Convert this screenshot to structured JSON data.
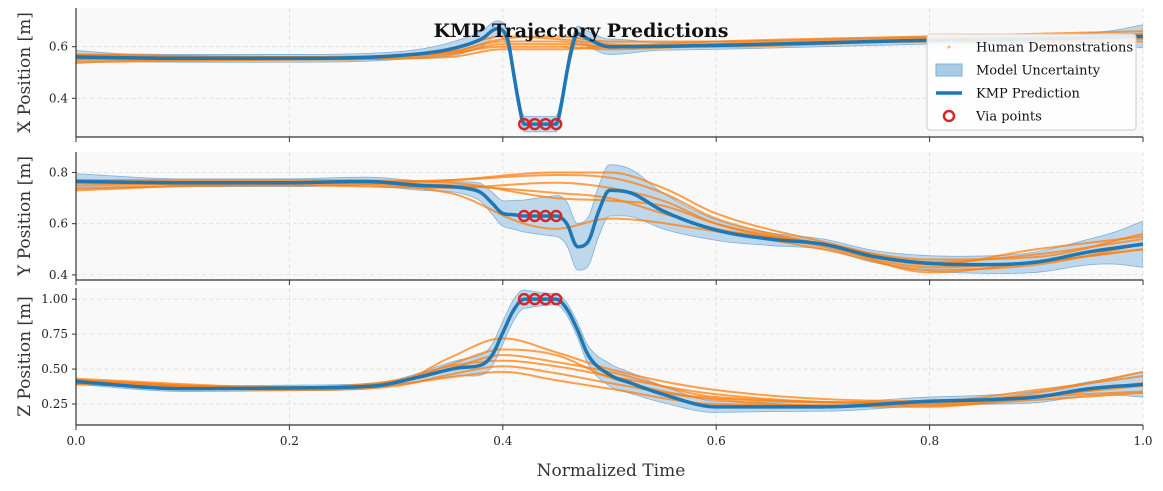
{
  "chart_data": {
    "type": "line",
    "title": "KMP Trajectory Predictions",
    "xlabel": "Normalized Time",
    "xlim": [
      0,
      1
    ],
    "xticks": [
      "0.0",
      "0.2",
      "0.4",
      "0.6",
      "0.8",
      "1.0"
    ],
    "xtick_values": [
      0,
      0.2,
      0.4,
      0.6,
      0.8,
      1.0
    ],
    "colors": {
      "prediction": "#1f77b4",
      "uncertainty": "#aacbe6",
      "demonstrations": "#ff7f0e",
      "via": "#d62728",
      "grid": "#dddddd",
      "plot_bg": "#f9f9f9"
    },
    "legend": {
      "placement": "top-right",
      "entries": [
        {
          "label": "Human Demonstrations",
          "kind": "dot"
        },
        {
          "label": "Model Uncertainty",
          "kind": "patch"
        },
        {
          "label": "KMP Prediction",
          "kind": "line"
        },
        {
          "label": "Via points",
          "kind": "circle"
        }
      ]
    },
    "subplots": [
      {
        "id": "x",
        "ylabel": "X Position [m]",
        "ylim": [
          0.25,
          0.75
        ],
        "yticks": [
          0.4,
          0.6
        ],
        "ytick_labels": [
          "0.4",
          "0.6"
        ],
        "prediction": {
          "t": [
            0,
            0.1,
            0.2,
            0.3,
            0.35,
            0.38,
            0.395,
            0.405,
            0.41,
            0.415,
            0.42,
            0.45,
            0.455,
            0.46,
            0.465,
            0.47,
            0.48,
            0.5,
            0.6,
            0.7,
            0.8,
            0.9,
            1.0
          ],
          "y": [
            0.56,
            0.555,
            0.555,
            0.565,
            0.59,
            0.63,
            0.67,
            0.62,
            0.5,
            0.38,
            0.3,
            0.3,
            0.38,
            0.5,
            0.6,
            0.65,
            0.63,
            0.6,
            0.605,
            0.615,
            0.625,
            0.63,
            0.64
          ]
        },
        "band_halfwidth": {
          "t": [
            0,
            0.05,
            0.3,
            0.38,
            0.41,
            0.45,
            0.5,
            0.55,
            0.9,
            0.97,
            1.0
          ],
          "w": [
            0.025,
            0.015,
            0.015,
            0.03,
            0.03,
            0.03,
            0.03,
            0.015,
            0.015,
            0.025,
            0.045
          ]
        },
        "demonstrations": [
          {
            "t": [
              0,
              0.2,
              0.35,
              0.4,
              0.45,
              0.5,
              0.6,
              0.8,
              1.0
            ],
            "y": [
              0.57,
              0.56,
              0.58,
              0.62,
              0.62,
              0.6,
              0.61,
              0.62,
              0.63
            ]
          },
          {
            "t": [
              0,
              0.2,
              0.35,
              0.4,
              0.45,
              0.5,
              0.6,
              0.8,
              1.0
            ],
            "y": [
              0.55,
              0.555,
              0.575,
              0.6,
              0.6,
              0.59,
              0.605,
              0.63,
              0.65
            ]
          },
          {
            "t": [
              0,
              0.2,
              0.35,
              0.4,
              0.45,
              0.5,
              0.6,
              0.8,
              1.0
            ],
            "y": [
              0.54,
              0.55,
              0.56,
              0.59,
              0.59,
              0.6,
              0.62,
              0.64,
              0.66
            ]
          },
          {
            "t": [
              0,
              0.2,
              0.35,
              0.4,
              0.45,
              0.5,
              0.6,
              0.8,
              1.0
            ],
            "y": [
              0.56,
              0.555,
              0.59,
              0.64,
              0.63,
              0.61,
              0.6,
              0.625,
              0.64
            ]
          },
          {
            "t": [
              0,
              0.2,
              0.35,
              0.4,
              0.45,
              0.5,
              0.6,
              0.8,
              1.0
            ],
            "y": [
              0.55,
              0.55,
              0.57,
              0.61,
              0.61,
              0.6,
              0.61,
              0.62,
              0.62
            ]
          },
          {
            "t": [
              0,
              0.2,
              0.35,
              0.4,
              0.45,
              0.5,
              0.6,
              0.8,
              1.0
            ],
            "y": [
              0.57,
              0.56,
              0.58,
              0.63,
              0.64,
              0.62,
              0.62,
              0.635,
              0.645
            ]
          }
        ],
        "via_points": {
          "t": [
            0.42,
            0.43,
            0.44,
            0.45
          ],
          "y": [
            0.3,
            0.3,
            0.3,
            0.3
          ]
        }
      },
      {
        "id": "y",
        "ylabel": "Y Position [m]",
        "ylim": [
          0.38,
          0.88
        ],
        "yticks": [
          0.4,
          0.6,
          0.8
        ],
        "ytick_labels": [
          "0.4",
          "0.6",
          "0.8"
        ],
        "prediction": {
          "t": [
            0,
            0.1,
            0.2,
            0.27,
            0.32,
            0.37,
            0.38,
            0.39,
            0.4,
            0.41,
            0.42,
            0.45,
            0.46,
            0.47,
            0.48,
            0.49,
            0.5,
            0.52,
            0.55,
            0.6,
            0.65,
            0.7,
            0.75,
            0.8,
            0.85,
            0.9,
            0.95,
            1.0
          ],
          "y": [
            0.765,
            0.76,
            0.76,
            0.765,
            0.75,
            0.735,
            0.72,
            0.68,
            0.64,
            0.635,
            0.63,
            0.63,
            0.6,
            0.51,
            0.53,
            0.65,
            0.73,
            0.72,
            0.65,
            0.575,
            0.54,
            0.52,
            0.47,
            0.445,
            0.44,
            0.45,
            0.49,
            0.52
          ]
        },
        "band_halfwidth": {
          "t": [
            0,
            0.1,
            0.35,
            0.4,
            0.45,
            0.5,
            0.55,
            0.6,
            0.7,
            0.8,
            0.9,
            0.97,
            1.0
          ],
          "w": [
            0.03,
            0.015,
            0.02,
            0.05,
            0.08,
            0.1,
            0.07,
            0.04,
            0.02,
            0.03,
            0.04,
            0.06,
            0.09
          ]
        },
        "demonstrations": [
          {
            "t": [
              0,
              0.2,
              0.35,
              0.45,
              0.5,
              0.55,
              0.6,
              0.7,
              0.8,
              0.9,
              1.0
            ],
            "y": [
              0.76,
              0.76,
              0.77,
              0.79,
              0.78,
              0.72,
              0.62,
              0.52,
              0.44,
              0.5,
              0.55
            ]
          },
          {
            "t": [
              0,
              0.2,
              0.35,
              0.45,
              0.5,
              0.55,
              0.6,
              0.7,
              0.8,
              0.9,
              1.0
            ],
            "y": [
              0.74,
              0.75,
              0.74,
              0.76,
              0.74,
              0.69,
              0.6,
              0.51,
              0.43,
              0.45,
              0.5
            ]
          },
          {
            "t": [
              0,
              0.2,
              0.35,
              0.42,
              0.45,
              0.5,
              0.6,
              0.7,
              0.8,
              0.9,
              1.0
            ],
            "y": [
              0.75,
              0.76,
              0.72,
              0.6,
              0.58,
              0.62,
              0.57,
              0.5,
              0.42,
              0.44,
              0.52
            ]
          },
          {
            "t": [
              0,
              0.2,
              0.35,
              0.45,
              0.5,
              0.55,
              0.6,
              0.7,
              0.8,
              0.9,
              1.0
            ],
            "y": [
              0.77,
              0.77,
              0.76,
              0.7,
              0.69,
              0.67,
              0.6,
              0.52,
              0.46,
              0.47,
              0.56
            ]
          },
          {
            "t": [
              0,
              0.2,
              0.35,
              0.45,
              0.5,
              0.55,
              0.6,
              0.7,
              0.8,
              0.9,
              1.0
            ],
            "y": [
              0.73,
              0.76,
              0.75,
              0.72,
              0.7,
              0.64,
              0.58,
              0.52,
              0.41,
              0.45,
              0.5
            ]
          },
          {
            "t": [
              0,
              0.2,
              0.35,
              0.45,
              0.5,
              0.55,
              0.6,
              0.7,
              0.8,
              0.9,
              1.0
            ],
            "y": [
              0.76,
              0.75,
              0.77,
              0.8,
              0.8,
              0.74,
              0.64,
              0.53,
              0.45,
              0.48,
              0.54
            ]
          }
        ],
        "via_points": {
          "t": [
            0.42,
            0.43,
            0.44,
            0.45
          ],
          "y": [
            0.63,
            0.63,
            0.63,
            0.63
          ]
        }
      },
      {
        "id": "z",
        "ylabel": "Z Position [m]",
        "ylim": [
          0.1,
          1.08
        ],
        "yticks": [
          0.25,
          0.5,
          0.75,
          1.0
        ],
        "ytick_labels": [
          "0.25",
          "0.50",
          "0.75",
          "1.00"
        ],
        "prediction": {
          "t": [
            0,
            0.1,
            0.2,
            0.28,
            0.32,
            0.36,
            0.38,
            0.39,
            0.4,
            0.41,
            0.42,
            0.45,
            0.46,
            0.47,
            0.48,
            0.5,
            0.52,
            0.55,
            0.6,
            0.7,
            0.8,
            0.85,
            0.9,
            0.95,
            1.0
          ],
          "y": [
            0.41,
            0.36,
            0.365,
            0.38,
            0.44,
            0.51,
            0.53,
            0.6,
            0.76,
            0.92,
            1.0,
            1.0,
            0.93,
            0.78,
            0.6,
            0.46,
            0.4,
            0.32,
            0.23,
            0.23,
            0.27,
            0.28,
            0.3,
            0.36,
            0.39
          ]
        },
        "band_halfwidth": {
          "t": [
            0,
            0.3,
            0.35,
            0.4,
            0.45,
            0.5,
            0.55,
            0.6,
            0.8,
            0.9,
            0.97,
            1.0
          ],
          "w": [
            0.02,
            0.02,
            0.05,
            0.08,
            0.04,
            0.08,
            0.06,
            0.04,
            0.03,
            0.04,
            0.06,
            0.09
          ]
        },
        "demonstrations": [
          {
            "t": [
              0,
              0.2,
              0.3,
              0.35,
              0.4,
              0.45,
              0.5,
              0.6,
              0.8,
              0.9,
              1.0
            ],
            "y": [
              0.42,
              0.36,
              0.4,
              0.58,
              0.72,
              0.62,
              0.5,
              0.35,
              0.27,
              0.35,
              0.45
            ]
          },
          {
            "t": [
              0,
              0.2,
              0.3,
              0.35,
              0.4,
              0.45,
              0.5,
              0.6,
              0.8,
              0.9,
              1.0
            ],
            "y": [
              0.4,
              0.37,
              0.42,
              0.52,
              0.56,
              0.52,
              0.45,
              0.32,
              0.25,
              0.3,
              0.4
            ]
          },
          {
            "t": [
              0,
              0.2,
              0.3,
              0.35,
              0.4,
              0.45,
              0.5,
              0.6,
              0.8,
              0.9,
              1.0
            ],
            "y": [
              0.41,
              0.35,
              0.38,
              0.46,
              0.52,
              0.47,
              0.4,
              0.28,
              0.23,
              0.3,
              0.34
            ]
          },
          {
            "t": [
              0,
              0.2,
              0.3,
              0.35,
              0.4,
              0.45,
              0.5,
              0.6,
              0.8,
              0.9,
              1.0
            ],
            "y": [
              0.43,
              0.37,
              0.41,
              0.5,
              0.6,
              0.55,
              0.48,
              0.3,
              0.26,
              0.33,
              0.48
            ]
          },
          {
            "t": [
              0,
              0.2,
              0.3,
              0.35,
              0.4,
              0.45,
              0.5,
              0.6,
              0.8,
              0.9,
              1.0
            ],
            "y": [
              0.39,
              0.36,
              0.39,
              0.44,
              0.48,
              0.42,
              0.36,
              0.25,
              0.24,
              0.28,
              0.33
            ]
          },
          {
            "t": [
              0,
              0.2,
              0.3,
              0.35,
              0.4,
              0.45,
              0.5,
              0.6,
              0.8,
              0.9,
              1.0
            ],
            "y": [
              0.42,
              0.36,
              0.4,
              0.53,
              0.64,
              0.6,
              0.44,
              0.29,
              0.26,
              0.31,
              0.38
            ]
          }
        ],
        "via_points": {
          "t": [
            0.42,
            0.43,
            0.44,
            0.45
          ],
          "y": [
            1.0,
            1.0,
            1.0,
            1.0
          ]
        }
      }
    ]
  }
}
